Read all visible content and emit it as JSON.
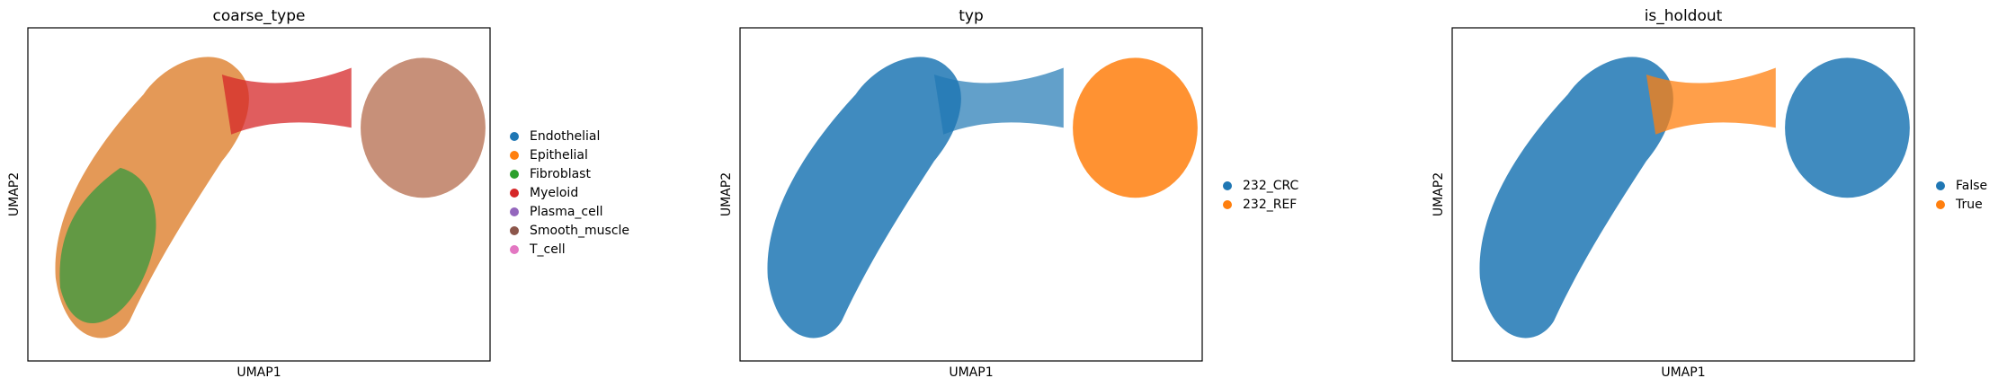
{
  "chart_data": [
    {
      "type": "scatter",
      "title": "coarse_type",
      "xlabel": "UMAP1",
      "ylabel": "UMAP2",
      "series": [
        {
          "name": "Endothelial",
          "color": "#1f77b4"
        },
        {
          "name": "Epithelial",
          "color": "#ff7f0e"
        },
        {
          "name": "Fibroblast",
          "color": "#2ca02c"
        },
        {
          "name": "Myeloid",
          "color": "#d62728"
        },
        {
          "name": "Plasma_cell",
          "color": "#9467bd"
        },
        {
          "name": "Smooth_muscle",
          "color": "#8c564b"
        },
        {
          "name": "T_cell",
          "color": "#e377c2"
        }
      ]
    },
    {
      "type": "scatter",
      "title": "typ",
      "xlabel": "UMAP1",
      "ylabel": "UMAP2",
      "series": [
        {
          "name": "232_CRC",
          "color": "#1f77b4"
        },
        {
          "name": "232_REF",
          "color": "#ff7f0e"
        }
      ]
    },
    {
      "type": "scatter",
      "title": "is_holdout",
      "xlabel": "UMAP1",
      "ylabel": "UMAP2",
      "series": [
        {
          "name": "False",
          "color": "#1f77b4"
        },
        {
          "name": "True",
          "color": "#ff7f0e"
        }
      ]
    }
  ]
}
